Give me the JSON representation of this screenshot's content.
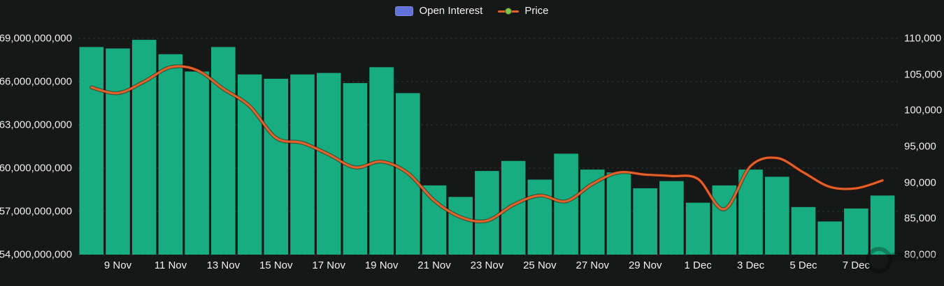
{
  "legend": {
    "open_interest_label": "Open Interest",
    "price_label": "Price"
  },
  "colors": {
    "background": "#161717",
    "bar": "#17ad81",
    "price_line": "#e4602b",
    "price_line_halo": "rgba(70,18,4,0.55)",
    "legend_swatch": "#6172d9",
    "legend_dot": "#82c24e",
    "grid": "#323334",
    "axis_text": "#ededed"
  },
  "chart_data": {
    "type": "bar",
    "title": "",
    "categories": [
      "8 Nov",
      "9 Nov",
      "10 Nov",
      "11 Nov",
      "12 Nov",
      "13 Nov",
      "14 Nov",
      "15 Nov",
      "16 Nov",
      "17 Nov",
      "18 Nov",
      "19 Nov",
      "20 Nov",
      "21 Nov",
      "22 Nov",
      "23 Nov",
      "24 Nov",
      "25 Nov",
      "26 Nov",
      "27 Nov",
      "28 Nov",
      "29 Nov",
      "30 Nov",
      "1 Dec",
      "2 Dec",
      "3 Dec",
      "4 Dec",
      "5 Dec",
      "6 Dec",
      "7 Dec",
      "8 Dec"
    ],
    "x_tick_labels": [
      "9 Nov",
      "11 Nov",
      "13 Nov",
      "15 Nov",
      "17 Nov",
      "19 Nov",
      "21 Nov",
      "23 Nov",
      "25 Nov",
      "27 Nov",
      "29 Nov",
      "1 Dec",
      "3 Dec",
      "5 Dec",
      "7 Dec"
    ],
    "series": [
      {
        "name": "Open Interest",
        "type": "bar",
        "axis": "left",
        "values": [
          68400000000,
          68300000000,
          68900000000,
          67900000000,
          66700000000,
          68400000000,
          66500000000,
          66200000000,
          66500000000,
          66600000000,
          65900000000,
          67000000000,
          65200000000,
          58800000000,
          58000000000,
          59800000000,
          60500000000,
          59200000000,
          61000000000,
          59900000000,
          59700000000,
          58600000000,
          59100000000,
          57600000000,
          58800000000,
          59900000000,
          59400000000,
          57300000000,
          56300000000,
          57200000000,
          58100000000
        ]
      },
      {
        "name": "Price",
        "type": "line",
        "axis": "right",
        "values": [
          103200,
          102400,
          104000,
          106000,
          105600,
          103000,
          100600,
          96200,
          95500,
          93900,
          92100,
          92900,
          91300,
          87500,
          85200,
          84700,
          86900,
          88200,
          87400,
          89800,
          91400,
          91100,
          90900,
          90500,
          86300,
          92300,
          93400,
          91400,
          89400,
          89200,
          90300
        ]
      }
    ],
    "left_axis": {
      "min": 54000000000,
      "max": 69000000000,
      "step": 3000000000,
      "tick_labels": [
        "69,000,000,000",
        "66,000,000,000",
        "63,000,000,000",
        "60,000,000,000",
        "57,000,000,000",
        "54,000,000,000"
      ]
    },
    "right_axis": {
      "min": 80000,
      "max": 110000,
      "step": 5000,
      "tick_labels": [
        "110,000",
        "105,000",
        "100,000",
        "95,000",
        "90,000",
        "85,000",
        "80,000"
      ]
    },
    "grid": "horizontal-dashed",
    "legend_position": "top-center"
  }
}
